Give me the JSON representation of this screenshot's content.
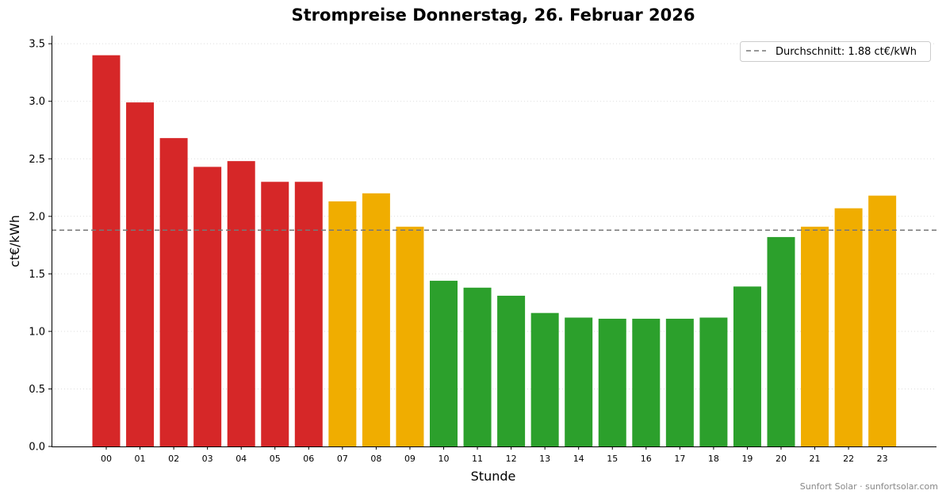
{
  "chart_data": {
    "type": "bar",
    "title": "Strompreise Donnerstag, 26. Februar 2026",
    "xlabel": "Stunde",
    "ylabel": "ct€/kWh",
    "ylim": [
      0,
      3.57
    ],
    "yticks": [
      "0.0",
      "0.5",
      "1.0",
      "1.5",
      "2.0",
      "2.5",
      "3.0",
      "3.5"
    ],
    "ytick_values": [
      0,
      0.5,
      1.0,
      1.5,
      2.0,
      2.5,
      3.0,
      3.5
    ],
    "categories": [
      "00",
      "01",
      "02",
      "03",
      "04",
      "05",
      "06",
      "07",
      "08",
      "09",
      "10",
      "11",
      "12",
      "13",
      "14",
      "15",
      "16",
      "17",
      "18",
      "19",
      "20",
      "21",
      "22",
      "23"
    ],
    "values": [
      3.4,
      2.99,
      2.68,
      2.43,
      2.48,
      2.3,
      2.3,
      2.13,
      2.2,
      1.91,
      1.44,
      1.38,
      1.31,
      1.16,
      1.12,
      1.11,
      1.11,
      1.11,
      1.12,
      1.39,
      1.82,
      1.91,
      2.07,
      2.18
    ],
    "bar_levels": [
      "high",
      "high",
      "high",
      "high",
      "high",
      "high",
      "high",
      "mid",
      "mid",
      "mid",
      "low",
      "low",
      "low",
      "low",
      "low",
      "low",
      "low",
      "low",
      "low",
      "low",
      "low",
      "mid",
      "mid",
      "mid"
    ],
    "level_colors": {
      "high": "#d62728",
      "mid": "#f0ad00",
      "low": "#2ca02c"
    },
    "average": 1.88,
    "average_color": "#777777",
    "legend": {
      "label": "Durchschnitt: 1.88 ct€/kWh",
      "position": "top-right"
    },
    "grid": {
      "y": true,
      "style": "dotted"
    }
  },
  "footer": "Sunfort Solar · sunfortsolar.com"
}
